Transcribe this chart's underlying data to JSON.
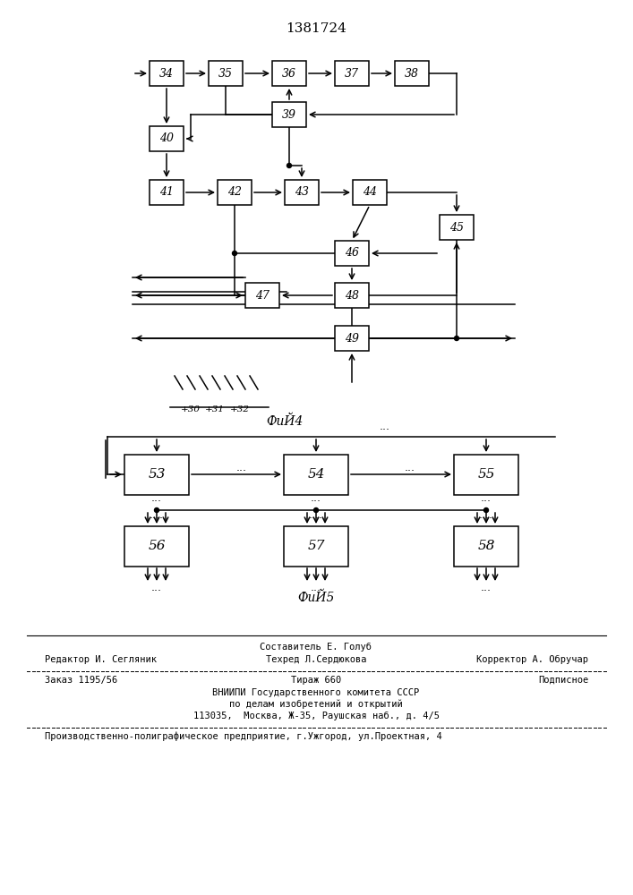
{
  "title": "1381724",
  "fig4_label": "ФиЙ4",
  "fig5_label": "ФиЙ5",
  "bg_color": "#ffffff",
  "line_color": "#000000",
  "text_color": "#000000",
  "footer": {
    "line1_center": "Составитель Е. Голуб",
    "line2_left": "Редактор И. Сегляник",
    "line2_center": "Техред Л.Сердюкова",
    "line2_right": "Корректор А. Обручар",
    "line3_left": "Заказ 1195/56",
    "line3_center": "Тираж 660",
    "line3_right": "Подписное",
    "line4_center": "ВНИИПИ Государственного комитета СССР",
    "line5_center": "по делам изобретений и открытий",
    "line6_center": "113035,  Москва, Ж-35, Раушская наб., д. 4/5",
    "line7_left": "Производственно-полиграфическое предприятие, г.Ужгород, ул.Проектная, 4"
  }
}
